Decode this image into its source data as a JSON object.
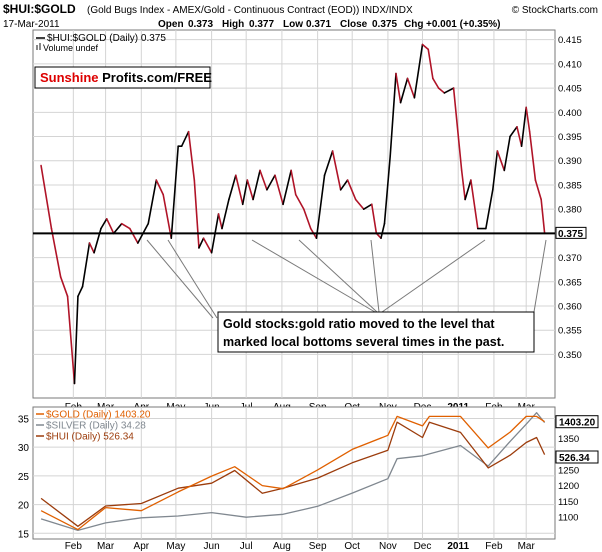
{
  "header": {
    "ticker": "$HUI:$GOLD",
    "description": "(Gold Bugs Index - AMEX/Gold - Continuous Contract (EOD))  INDX/INDX",
    "brand": "© StockCharts.com",
    "date": "17-Mar-2011",
    "open_label": "Open",
    "open_value": "0.373",
    "high_label": "High",
    "high_value": "0.377",
    "low_label": "Low",
    "low_value": "0.371",
    "close_label": "Close",
    "close_value": "0.375",
    "chg_label": "Chg",
    "chg_value": "+0.001 (+0.35%)"
  },
  "legend_top": {
    "series_label": "$HUI:$GOLD (Daily) 0.375",
    "volume_label": "Volume undef"
  },
  "watermark": {
    "part1": "Sunshine",
    "part2": " Profits.com/FREE"
  },
  "annotation": {
    "line1": "Gold stocks:gold ratio moved to the level that",
    "line2": "marked local bottoms several times in the past."
  },
  "price_tag_top": "0.375",
  "price_tags_bottom": [
    "1403.20",
    "526.34"
  ],
  "legend_bottom": [
    {
      "label": "$GOLD (Daily) 1403.20",
      "color": "#e06000"
    },
    {
      "label": "$SILVER (Daily) 34.28",
      "color": "#808890"
    },
    {
      "label": "$HUI (Daily) 526.34",
      "color": "#9c3c0c"
    }
  ],
  "colors": {
    "ratio_up": "#000000",
    "ratio_down": "#b01428",
    "gold": "#e06000",
    "silver": "#808890",
    "hui": "#9c3c0c",
    "watermark_red": "#dd0000",
    "grid": "#d4d4d4"
  },
  "chart_data": [
    {
      "type": "line",
      "title": "$HUI:$GOLD (Daily)",
      "ylim": [
        0.341,
        0.417
      ],
      "y_ticks": [
        "0.415",
        "0.410",
        "0.405",
        "0.400",
        "0.395",
        "0.390",
        "0.385",
        "0.380",
        "0.375",
        "0.370",
        "0.365",
        "0.360",
        "0.355",
        "0.350"
      ],
      "x_ticks": [
        "Feb",
        "Mar",
        "Apr",
        "May",
        "Jun",
        "Jul",
        "Aug",
        "Sep",
        "Oct",
        "Nov",
        "Dec",
        "2011",
        "Feb",
        "Mar"
      ],
      "reference_line": 0.375,
      "series": [
        {
          "name": "$HUI:$GOLD (Daily)",
          "x": [
            "2010-01-04",
            "2010-01-13",
            "2010-01-21",
            "2010-01-27",
            "2010-02-02",
            "2010-02-05",
            "2010-02-09",
            "2010-02-15",
            "2010-02-19",
            "2010-02-25",
            "2010-03-02",
            "2010-03-08",
            "2010-03-15",
            "2010-03-22",
            "2010-03-29",
            "2010-04-07",
            "2010-04-14",
            "2010-04-20",
            "2010-04-27",
            "2010-05-03",
            "2010-05-06",
            "2010-05-12",
            "2010-05-17",
            "2010-05-21",
            "2010-05-25",
            "2010-06-01",
            "2010-06-07",
            "2010-06-10",
            "2010-06-16",
            "2010-06-22",
            "2010-06-28",
            "2010-07-02",
            "2010-07-07",
            "2010-07-13",
            "2010-07-19",
            "2010-07-26",
            "2010-08-02",
            "2010-08-09",
            "2010-08-13",
            "2010-08-20",
            "2010-08-26",
            "2010-08-31",
            "2010-09-07",
            "2010-09-14",
            "2010-09-21",
            "2010-09-27",
            "2010-10-04",
            "2010-10-11",
            "2010-10-18",
            "2010-10-22",
            "2010-10-26",
            "2010-10-29",
            "2010-11-03",
            "2010-11-08",
            "2010-11-12",
            "2010-11-18",
            "2010-11-24",
            "2010-12-01",
            "2010-12-06",
            "2010-12-10",
            "2010-12-15",
            "2010-12-20",
            "2010-12-28",
            "2011-01-04",
            "2011-01-07",
            "2011-01-12",
            "2011-01-18",
            "2011-01-25",
            "2011-01-31",
            "2011-02-04",
            "2011-02-10",
            "2011-02-15",
            "2011-02-21",
            "2011-02-25",
            "2011-03-01",
            "2011-03-04",
            "2011-03-09",
            "2011-03-14",
            "2011-03-17"
          ],
          "values": [
            0.389,
            0.376,
            0.366,
            0.362,
            0.344,
            0.362,
            0.364,
            0.373,
            0.371,
            0.376,
            0.378,
            0.375,
            0.377,
            0.376,
            0.373,
            0.377,
            0.386,
            0.383,
            0.374,
            0.393,
            0.393,
            0.396,
            0.386,
            0.372,
            0.374,
            0.371,
            0.379,
            0.376,
            0.382,
            0.387,
            0.381,
            0.386,
            0.382,
            0.388,
            0.384,
            0.387,
            0.381,
            0.388,
            0.383,
            0.38,
            0.376,
            0.374,
            0.387,
            0.392,
            0.384,
            0.386,
            0.382,
            0.38,
            0.381,
            0.375,
            0.374,
            0.377,
            0.391,
            0.408,
            0.402,
            0.407,
            0.403,
            0.414,
            0.413,
            0.407,
            0.405,
            0.404,
            0.405,
            0.388,
            0.382,
            0.386,
            0.376,
            0.376,
            0.384,
            0.392,
            0.388,
            0.395,
            0.397,
            0.393,
            0.401,
            0.396,
            0.386,
            0.382,
            0.375
          ]
        }
      ]
    },
    {
      "type": "line",
      "title": "",
      "left_axis_ticks": [
        "35",
        "30",
        "25",
        "20",
        "15"
      ],
      "right_axis_ticks": [
        "1350",
        "1300",
        "1250",
        "1200",
        "1150",
        "1100"
      ],
      "ylim_left": [
        14,
        37
      ],
      "x_ticks": [
        "Feb",
        "Mar",
        "Apr",
        "May",
        "Jun",
        "Jul",
        "Aug",
        "Sep",
        "Oct",
        "Nov",
        "Dec",
        "2011",
        "Feb",
        "Mar"
      ],
      "series": [
        {
          "name": "$GOLD (Daily)",
          "x": [
            "2010-01-04",
            "2010-02-05",
            "2010-03-01",
            "2010-04-01",
            "2010-05-03",
            "2010-06-01",
            "2010-06-21",
            "2010-07-15",
            "2010-08-02",
            "2010-09-01",
            "2010-10-01",
            "2010-11-01",
            "2010-11-09",
            "2010-12-01",
            "2010-12-07",
            "2011-01-03",
            "2011-01-27",
            "2011-02-15",
            "2011-03-01",
            "2011-03-10",
            "2011-03-17"
          ],
          "values": [
            1120,
            1060,
            1130,
            1120,
            1180,
            1230,
            1260,
            1200,
            1190,
            1250,
            1315,
            1360,
            1420,
            1390,
            1420,
            1420,
            1320,
            1370,
            1420,
            1420,
            1403.2
          ]
        },
        {
          "name": "$SILVER (Daily)",
          "x": [
            "2010-01-04",
            "2010-02-05",
            "2010-03-01",
            "2010-04-01",
            "2010-05-03",
            "2010-06-01",
            "2010-07-01",
            "2010-08-02",
            "2010-09-01",
            "2010-10-01",
            "2010-11-01",
            "2010-11-09",
            "2010-12-01",
            "2011-01-03",
            "2011-01-27",
            "2011-02-15",
            "2011-03-01",
            "2011-03-10",
            "2011-03-17"
          ],
          "values": [
            17.5,
            15.5,
            16.8,
            17.7,
            18.0,
            18.6,
            17.8,
            18.3,
            19.7,
            22.0,
            24.5,
            28.0,
            28.5,
            30.3,
            26.7,
            31.0,
            34.0,
            36.0,
            34.28
          ]
        },
        {
          "name": "$HUI (Daily)",
          "x": [
            "2010-01-04",
            "2010-02-05",
            "2010-03-01",
            "2010-04-01",
            "2010-05-03",
            "2010-06-01",
            "2010-06-21",
            "2010-07-15",
            "2010-08-02",
            "2010-09-01",
            "2010-10-01",
            "2010-11-01",
            "2010-11-09",
            "2010-12-01",
            "2010-12-07",
            "2011-01-03",
            "2011-01-27",
            "2011-02-15",
            "2011-03-01",
            "2011-03-10",
            "2011-03-17"
          ],
          "values": [
            440,
            385,
            425,
            430,
            460,
            470,
            495,
            450,
            460,
            480,
            510,
            535,
            590,
            560,
            590,
            570,
            500,
            525,
            550,
            560,
            526.34
          ]
        }
      ]
    }
  ]
}
